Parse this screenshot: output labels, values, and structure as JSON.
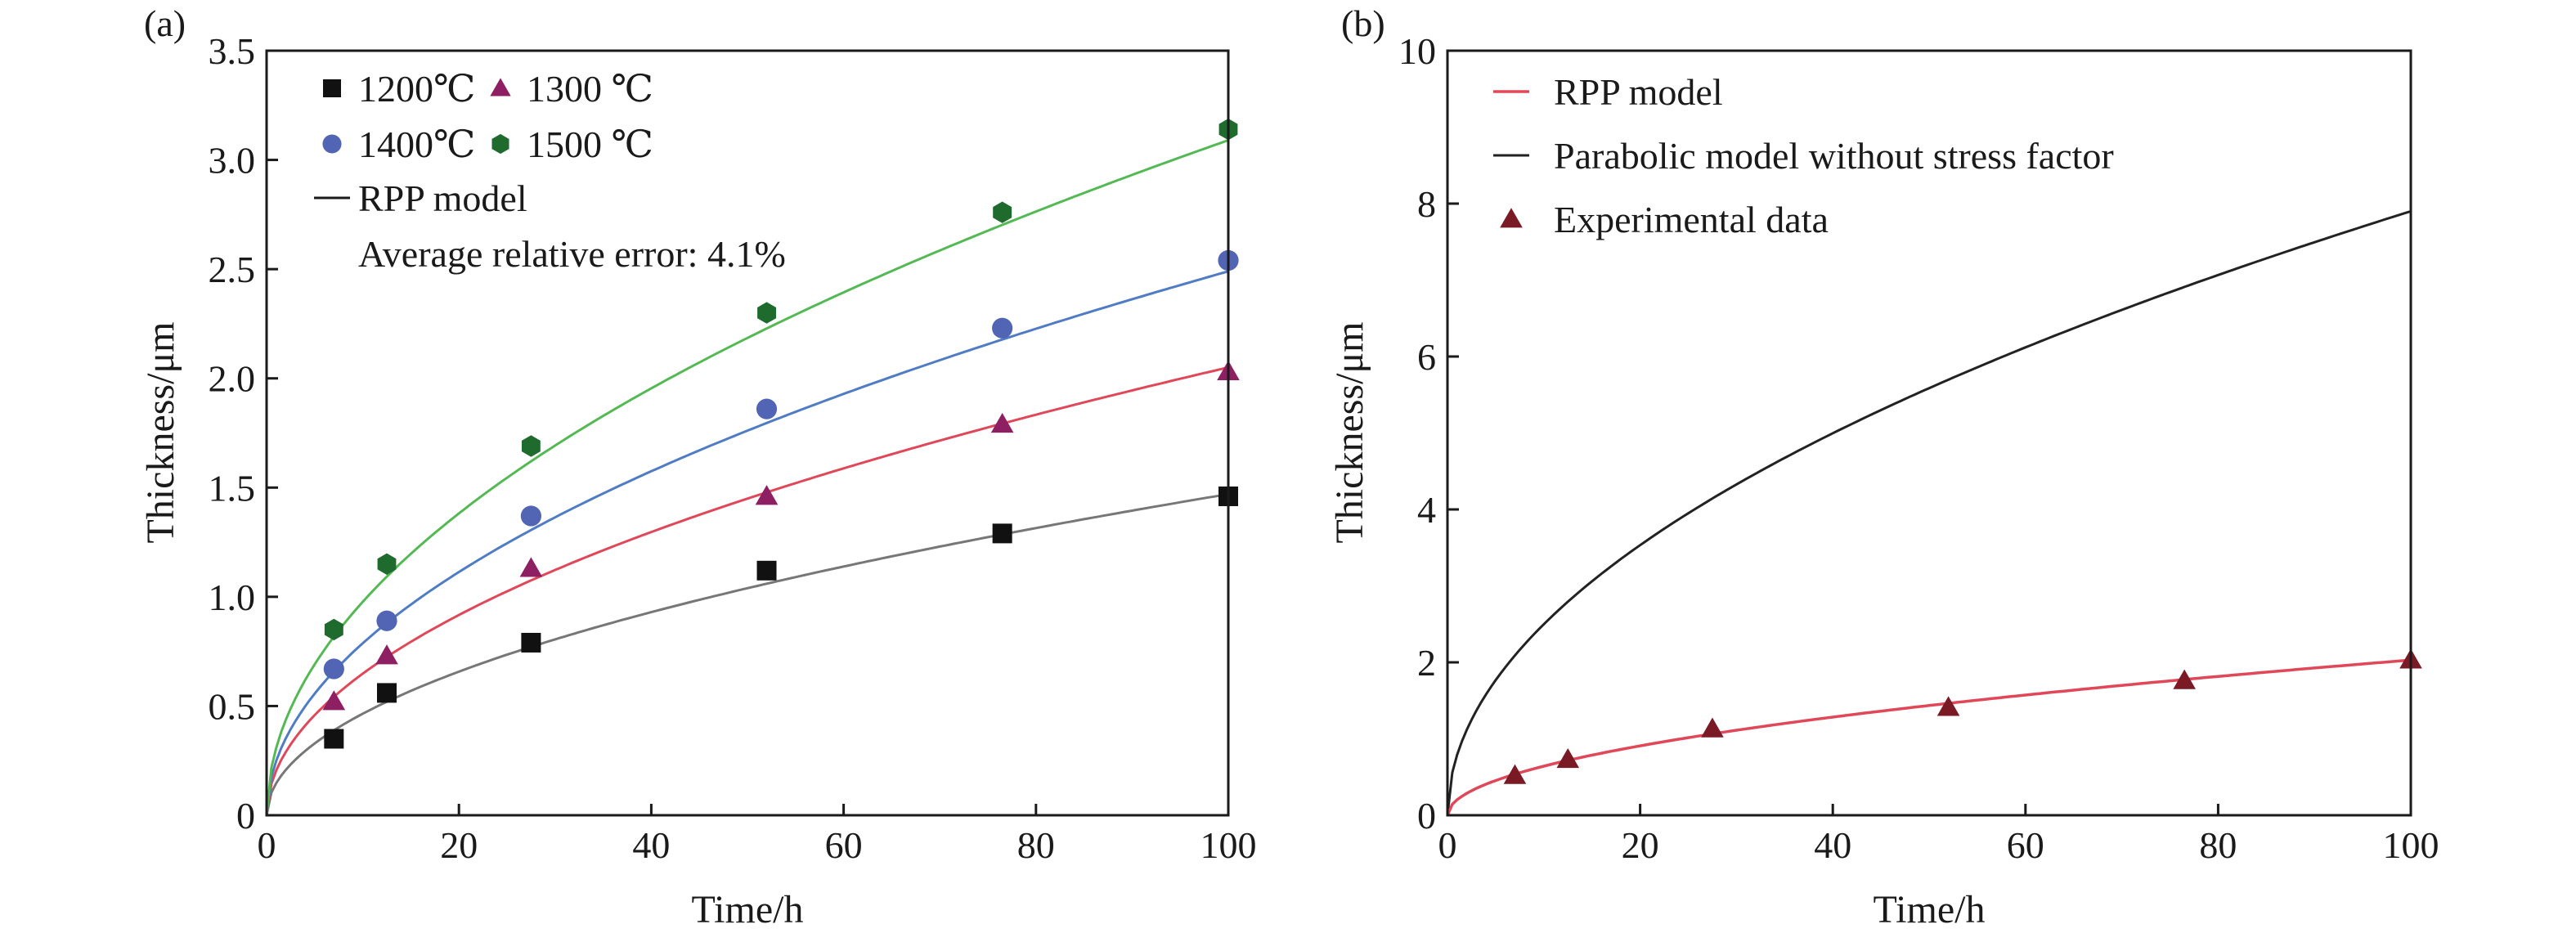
{
  "chart_data": [
    {
      "panel_label": "(a)",
      "type": "scatter",
      "xlabel": "Time/h",
      "ylabel": "Thickness/μm",
      "xlim": [
        0,
        100
      ],
      "ylim": [
        0,
        3.5
      ],
      "xticks": [
        "0",
        "20",
        "40",
        "60",
        "80",
        "100"
      ],
      "yticks": [
        "0",
        "0.5",
        "1.0",
        "1.5",
        "2.0",
        "2.5",
        "3.0",
        "3.5"
      ],
      "grid": false,
      "legend_position": "top-left",
      "series": [
        {
          "name": "1200℃",
          "marker": "square",
          "color": "#111111",
          "x": [
            7,
            12.5,
            27.5,
            52,
            76.5,
            100
          ],
          "y": [
            0.35,
            0.56,
            0.79,
            1.12,
            1.29,
            1.46
          ]
        },
        {
          "name": "1300 ℃",
          "marker": "triangle",
          "color": "#8e1f63",
          "x": [
            7,
            12.5,
            27.5,
            52,
            76.5,
            100
          ],
          "y": [
            0.52,
            0.73,
            1.13,
            1.46,
            1.79,
            2.03
          ]
        },
        {
          "name": "1400℃",
          "marker": "circle",
          "color": "#5265b5",
          "x": [
            7,
            12.5,
            27.5,
            52,
            76.5,
            100
          ],
          "y": [
            0.67,
            0.89,
            1.37,
            1.86,
            2.23,
            2.54
          ]
        },
        {
          "name": "1500 ℃",
          "marker": "hexagon",
          "color": "#1f6b2e",
          "x": [
            7,
            12.5,
            27.5,
            52,
            76.5,
            100
          ],
          "y": [
            0.85,
            1.15,
            1.69,
            2.3,
            2.76,
            3.14
          ]
        }
      ],
      "model_curves": [
        {
          "series": "1200℃",
          "color": "#777777",
          "coef": 0.147
        },
        {
          "series": "1300 ℃",
          "color": "#e0485a",
          "coef": 0.205
        },
        {
          "series": "1400℃",
          "color": "#4f7cc4",
          "coef": 0.249
        },
        {
          "series": "1500 ℃",
          "color": "#54b954",
          "coef": 0.309
        }
      ],
      "model_legend": {
        "name": "RPP model",
        "color": "#1a1a1a"
      },
      "annotation": "Average relative error: 4.1%"
    },
    {
      "panel_label": "(b)",
      "type": "line",
      "xlabel": "Time/h",
      "ylabel": "Thickness/μm",
      "xlim": [
        0,
        100
      ],
      "ylim": [
        0,
        10
      ],
      "xticks": [
        "0",
        "20",
        "40",
        "60",
        "80",
        "100"
      ],
      "yticks": [
        "0",
        "2",
        "4",
        "6",
        "8",
        "10"
      ],
      "grid": false,
      "legend_position": "top-left",
      "series": [
        {
          "name": "RPP model",
          "color": "#e0485a",
          "coef": 0.203
        },
        {
          "name": "Parabolic model without stress factor",
          "color": "#222222",
          "coef": 0.79
        },
        {
          "name": "Experimental data",
          "marker": "triangle",
          "color": "#7a1a24",
          "x": [
            7,
            12.5,
            27.5,
            52,
            76.5,
            100
          ],
          "y": [
            0.52,
            0.73,
            1.13,
            1.41,
            1.76,
            2.03
          ]
        }
      ]
    }
  ]
}
